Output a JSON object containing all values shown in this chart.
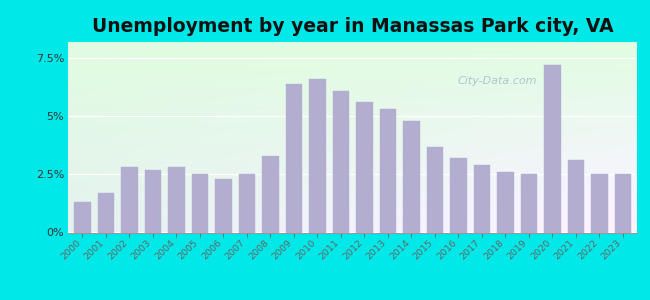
{
  "title": "Unemployment by year in Manassas Park city, VA",
  "years": [
    2000,
    2001,
    2002,
    2003,
    2004,
    2005,
    2006,
    2007,
    2008,
    2009,
    2010,
    2011,
    2012,
    2013,
    2014,
    2015,
    2016,
    2017,
    2018,
    2019,
    2020,
    2021,
    2022,
    2023
  ],
  "values": [
    1.3,
    1.7,
    2.8,
    2.7,
    2.8,
    2.5,
    2.3,
    2.5,
    3.3,
    6.4,
    6.6,
    6.1,
    5.6,
    5.3,
    4.8,
    3.7,
    3.2,
    2.9,
    2.6,
    2.5,
    7.2,
    3.1,
    2.5,
    2.5
  ],
  "bar_color": "#b3aed0",
  "background_outer": "#00e8e8",
  "background_grad_topleft": "#c8eec8",
  "background_grad_bottomright": "#e8f8f0",
  "yticks": [
    0,
    2.5,
    5.0,
    7.5
  ],
  "ylim": [
    0,
    8.2
  ],
  "title_fontsize": 13.5,
  "watermark_text": "City-Data.com"
}
